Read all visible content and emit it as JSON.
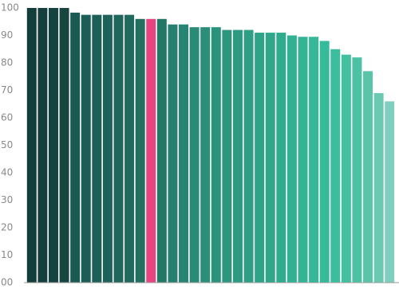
{
  "chart_data": {
    "type": "bar",
    "categories": [
      null,
      null,
      null,
      null,
      null,
      null,
      null,
      null,
      null,
      null,
      null,
      null,
      null,
      null,
      null,
      null,
      null,
      null,
      null,
      null,
      null,
      null,
      null,
      null,
      null,
      null,
      null,
      null,
      null,
      null,
      null,
      null,
      null,
      null
    ],
    "values": [
      100,
      100,
      100,
      100,
      98.3,
      97.5,
      97.5,
      97.5,
      97.5,
      97.5,
      96,
      96,
      96,
      94,
      94,
      93,
      93,
      93,
      92,
      92,
      92,
      91,
      91,
      91,
      90,
      89.5,
      89.5,
      88,
      85,
      83,
      82,
      77,
      69,
      66
    ],
    "colors": [
      "#123d3b",
      "#143f3d",
      "#15433f",
      "#174641",
      "#1b5a52",
      "#1c5d55",
      "#1d6057",
      "#1e635a",
      "#1f665c",
      "#20695e",
      "#217060",
      "#e84580",
      "#237865",
      "#268070",
      "#278473",
      "#298a76",
      "#2a8e79",
      "#2b927c",
      "#2c967f",
      "#2d9a82",
      "#2e9e85",
      "#2fa388",
      "#30a78b",
      "#31ab8e",
      "#32b091",
      "#33b494",
      "#34b897",
      "#36bb9a",
      "#3cbd9d",
      "#44bfa0",
      "#4dc1a4",
      "#5ac4a9",
      "#6bc9b1",
      "#80cfbe"
    ],
    "ylim": [
      0,
      100
    ],
    "yticks": [
      {
        "value": 0,
        "label": "00"
      },
      10,
      20,
      30,
      40,
      50,
      60,
      70,
      80,
      90,
      100
    ],
    "grid": false
  }
}
